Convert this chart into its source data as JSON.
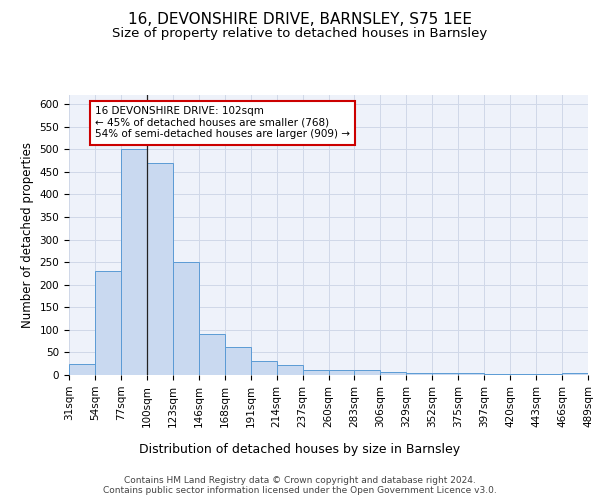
{
  "title1": "16, DEVONSHIRE DRIVE, BARNSLEY, S75 1EE",
  "title2": "Size of property relative to detached houses in Barnsley",
  "xlabel": "Distribution of detached houses by size in Barnsley",
  "ylabel": "Number of detached properties",
  "bar_heights": [
    25,
    230,
    500,
    470,
    250,
    90,
    62,
    30,
    22,
    11,
    10,
    10,
    7,
    5,
    4,
    4,
    3,
    3,
    2,
    5
  ],
  "categories": [
    "31sqm",
    "54sqm",
    "77sqm",
    "100sqm",
    "123sqm",
    "146sqm",
    "168sqm",
    "191sqm",
    "214sqm",
    "237sqm",
    "260sqm",
    "283sqm",
    "306sqm",
    "329sqm",
    "352sqm",
    "375sqm",
    "397sqm",
    "420sqm",
    "443sqm",
    "466sqm",
    "489sqm"
  ],
  "bar_color": "#c9d9f0",
  "bar_edge_color": "#5b9bd5",
  "grid_color": "#d0d8e8",
  "background_color": "#eef2fa",
  "annotation_text": "16 DEVONSHIRE DRIVE: 102sqm\n← 45% of detached houses are smaller (768)\n54% of semi-detached houses are larger (909) →",
  "annotation_box_color": "#ffffff",
  "annotation_box_edge": "#cc0000",
  "ylim": [
    0,
    620
  ],
  "yticks": [
    0,
    50,
    100,
    150,
    200,
    250,
    300,
    350,
    400,
    450,
    500,
    550,
    600
  ],
  "footer_text": "Contains HM Land Registry data © Crown copyright and database right 2024.\nContains public sector information licensed under the Open Government Licence v3.0.",
  "title1_fontsize": 11,
  "title2_fontsize": 9.5,
  "xlabel_fontsize": 9,
  "ylabel_fontsize": 8.5,
  "tick_fontsize": 7.5,
  "footer_fontsize": 6.5
}
